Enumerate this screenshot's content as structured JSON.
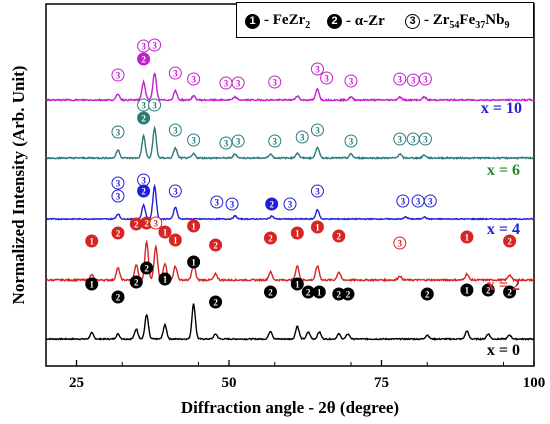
{
  "chart_data": {
    "type": "line",
    "xlabel": "Diffraction angle - 2θ (degree)",
    "ylabel": "Normalized Intensity (Arb. Unit)",
    "xlim": [
      20,
      100
    ],
    "xticks": [
      25,
      50,
      75,
      100
    ],
    "legend": {
      "placement": "top-right",
      "entries": [
        {
          "marker": "1",
          "style": "filled",
          "label_main": "- FeZr",
          "label_sub": "2",
          "label_tail": ""
        },
        {
          "marker": "2",
          "style": "filled",
          "label_main": "- α-Zr",
          "label_sub": "",
          "label_tail": ""
        },
        {
          "marker": "3",
          "style": "open",
          "label_main": "- Zr",
          "label_sub": "54",
          "label_tail": "Fe",
          "label_sub2": "37",
          "label_tail2": "Nb",
          "label_sub3": "9"
        }
      ]
    },
    "series": [
      {
        "name": "x = 0",
        "color": "#000000",
        "offset": 0,
        "noise": 0.6,
        "peaks": [
          [
            27.5,
            6
          ],
          [
            31.8,
            5
          ],
          [
            34.8,
            10
          ],
          [
            36.5,
            24
          ],
          [
            39.5,
            14
          ],
          [
            44.2,
            35
          ],
          [
            47.8,
            5
          ],
          [
            56.8,
            8
          ],
          [
            61.2,
            13
          ],
          [
            63.0,
            7
          ],
          [
            64.8,
            7
          ],
          [
            68.0,
            5
          ],
          [
            69.5,
            5
          ],
          [
            82.5,
            4
          ],
          [
            89.0,
            8
          ],
          [
            92.5,
            5
          ],
          [
            96.0,
            4
          ]
        ],
        "markers": [
          {
            "x": 27.5,
            "y": 284,
            "m": "1"
          },
          {
            "x": 31.8,
            "y": 297,
            "m": "2"
          },
          {
            "x": 34.8,
            "y": 282,
            "m": "2"
          },
          {
            "x": 36.5,
            "y": 268,
            "m": "2"
          },
          {
            "x": 39.5,
            "y": 279,
            "m": "1"
          },
          {
            "x": 44.2,
            "y": 262,
            "m": "1"
          },
          {
            "x": 47.8,
            "y": 302,
            "m": "2"
          },
          {
            "x": 56.8,
            "y": 292,
            "m": "2"
          },
          {
            "x": 61.2,
            "y": 284,
            "m": "1"
          },
          {
            "x": 63.0,
            "y": 292,
            "m": "2"
          },
          {
            "x": 64.8,
            "y": 292,
            "m": "1"
          },
          {
            "x": 68.0,
            "y": 294,
            "m": "2"
          },
          {
            "x": 69.5,
            "y": 294,
            "m": "2"
          },
          {
            "x": 82.5,
            "y": 294,
            "m": "2"
          },
          {
            "x": 89.0,
            "y": 290,
            "m": "1"
          },
          {
            "x": 92.5,
            "y": 290,
            "m": "2"
          },
          {
            "x": 96.0,
            "y": 292,
            "m": "2"
          }
        ]
      },
      {
        "name": "x = 2",
        "color": "#d62525",
        "offset": 0,
        "noise": 0.8,
        "peaks": [
          [
            27.5,
            5
          ],
          [
            31.8,
            12
          ],
          [
            34.8,
            15
          ],
          [
            36.5,
            38
          ],
          [
            38.0,
            34
          ],
          [
            39.5,
            16
          ],
          [
            41.2,
            14
          ],
          [
            44.2,
            16
          ],
          [
            47.8,
            6
          ],
          [
            56.8,
            8
          ],
          [
            61.2,
            14
          ],
          [
            64.5,
            14
          ],
          [
            68.0,
            8
          ],
          [
            78.0,
            4
          ],
          [
            89.0,
            6
          ],
          [
            96.0,
            5
          ]
        ],
        "markers": [
          {
            "x": 27.5,
            "y": 241,
            "m": "1"
          },
          {
            "x": 31.8,
            "y": 233,
            "m": "2"
          },
          {
            "x": 34.8,
            "y": 224,
            "m": "2"
          },
          {
            "x": 36.5,
            "y": 223,
            "m": "2"
          },
          {
            "x": 38.0,
            "y": 223,
            "m": "3"
          },
          {
            "x": 39.5,
            "y": 232,
            "m": "1"
          },
          {
            "x": 41.2,
            "y": 240,
            "m": "1"
          },
          {
            "x": 44.2,
            "y": 226,
            "m": "1"
          },
          {
            "x": 47.8,
            "y": 245,
            "m": "2"
          },
          {
            "x": 56.8,
            "y": 238,
            "m": "2"
          },
          {
            "x": 61.2,
            "y": 233,
            "m": "1"
          },
          {
            "x": 64.5,
            "y": 227,
            "m": "1"
          },
          {
            "x": 68.0,
            "y": 236,
            "m": "2"
          },
          {
            "x": 78.0,
            "y": 243,
            "m": "3"
          },
          {
            "x": 89.0,
            "y": 237,
            "m": "1"
          },
          {
            "x": 96.0,
            "y": 241,
            "m": "2"
          }
        ]
      },
      {
        "name": "x = 4",
        "color": "#1f1fd6",
        "offset": 0,
        "noise": 0.5,
        "peaks": [
          [
            31.8,
            5
          ],
          [
            36.0,
            14
          ],
          [
            37.8,
            33
          ],
          [
            41.2,
            12
          ],
          [
            51.0,
            3
          ],
          [
            57.0,
            3
          ],
          [
            64.5,
            9
          ],
          [
            79.0,
            2
          ],
          [
            82.0,
            2
          ]
        ],
        "markers": [
          {
            "x": 31.8,
            "y": 183,
            "m": "3"
          },
          {
            "x": 31.8,
            "y": 196,
            "m": "3"
          },
          {
            "x": 36.0,
            "y": 180,
            "m": "3"
          },
          {
            "x": 36.0,
            "y": 191,
            "m": "2"
          },
          {
            "x": 41.2,
            "y": 191,
            "m": "3"
          },
          {
            "x": 48.0,
            "y": 202,
            "m": "3"
          },
          {
            "x": 50.5,
            "y": 204,
            "m": "3"
          },
          {
            "x": 57.0,
            "y": 204,
            "m": "2"
          },
          {
            "x": 60.0,
            "y": 204,
            "m": "3"
          },
          {
            "x": 64.5,
            "y": 191,
            "m": "3"
          },
          {
            "x": 78.5,
            "y": 201,
            "m": "3"
          },
          {
            "x": 81.0,
            "y": 201,
            "m": "3"
          },
          {
            "x": 83.0,
            "y": 201,
            "m": "3"
          }
        ]
      },
      {
        "name": "x = 6",
        "color": "#2a7a7a",
        "offset": 0,
        "noise": 0.7,
        "peaks": [
          [
            31.8,
            8
          ],
          [
            36.0,
            22
          ],
          [
            37.8,
            30
          ],
          [
            41.2,
            10
          ],
          [
            44.2,
            4
          ],
          [
            51.0,
            4
          ],
          [
            56.8,
            4
          ],
          [
            61.2,
            5
          ],
          [
            64.5,
            11
          ],
          [
            70.0,
            4
          ],
          [
            78.0,
            4
          ],
          [
            82.0,
            3
          ]
        ],
        "markers": [
          {
            "x": 31.8,
            "y": 132,
            "m": "3"
          },
          {
            "x": 36.0,
            "y": 105,
            "m": "3"
          },
          {
            "x": 36.0,
            "y": 118,
            "m": "2"
          },
          {
            "x": 37.8,
            "y": 105,
            "m": "3"
          },
          {
            "x": 41.2,
            "y": 130,
            "m": "3"
          },
          {
            "x": 44.2,
            "y": 140,
            "m": "3"
          },
          {
            "x": 49.5,
            "y": 143,
            "m": "3"
          },
          {
            "x": 51.5,
            "y": 141,
            "m": "3"
          },
          {
            "x": 57.5,
            "y": 141,
            "m": "3"
          },
          {
            "x": 62.0,
            "y": 137,
            "m": "3"
          },
          {
            "x": 64.5,
            "y": 130,
            "m": "3"
          },
          {
            "x": 70.0,
            "y": 141,
            "m": "3"
          },
          {
            "x": 78.0,
            "y": 139,
            "m": "3"
          },
          {
            "x": 80.2,
            "y": 139,
            "m": "3"
          },
          {
            "x": 82.2,
            "y": 139,
            "m": "3"
          }
        ]
      },
      {
        "name": "x = 10",
        "color": "#c41fcc",
        "offset": 0,
        "noise": 0.7,
        "peaks": [
          [
            31.8,
            6
          ],
          [
            36.0,
            18
          ],
          [
            37.8,
            27
          ],
          [
            41.2,
            9
          ],
          [
            44.2,
            4
          ],
          [
            51.0,
            3
          ],
          [
            61.2,
            4
          ],
          [
            64.5,
            11
          ],
          [
            70.0,
            3
          ],
          [
            78.0,
            3
          ],
          [
            82.0,
            3
          ]
        ],
        "markers": [
          {
            "x": 31.8,
            "y": 75,
            "m": "3"
          },
          {
            "x": 36.0,
            "y": 46,
            "m": "3"
          },
          {
            "x": 36.0,
            "y": 59,
            "m": "2"
          },
          {
            "x": 37.8,
            "y": 45,
            "m": "3"
          },
          {
            "x": 41.2,
            "y": 73,
            "m": "3"
          },
          {
            "x": 44.2,
            "y": 79,
            "m": "3"
          },
          {
            "x": 49.5,
            "y": 83,
            "m": "3"
          },
          {
            "x": 51.5,
            "y": 83,
            "m": "3"
          },
          {
            "x": 57.5,
            "y": 82,
            "m": "3"
          },
          {
            "x": 64.5,
            "y": 69,
            "m": "3"
          },
          {
            "x": 66.0,
            "y": 78,
            "m": "3"
          },
          {
            "x": 70.0,
            "y": 81,
            "m": "3"
          },
          {
            "x": 78.0,
            "y": 79,
            "m": "3"
          },
          {
            "x": 80.2,
            "y": 80,
            "m": "3"
          },
          {
            "x": 82.2,
            "y": 79,
            "m": "3"
          }
        ]
      }
    ]
  }
}
